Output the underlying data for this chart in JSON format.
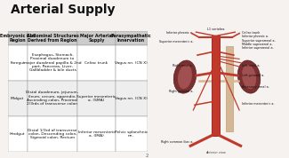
{
  "title": "Arterial Supply",
  "title_fontsize": 10,
  "background_color": "#f0ece8",
  "table_headers": [
    "Embryonic Gut\nRegion",
    "Abdominal Structures\nDerived from Region",
    "Major Arterial\nSupply",
    "Parasympathetic\nInnervation"
  ],
  "table_rows": [
    [
      "Foregut",
      "Esophagus, Stomach,\nProximal duodenum to\nmajor duodenal papilla & 2nd\npart, Pancreas, Liver,\nGallbladder & bile ducts",
      "Celiac trunk",
      "Vagus nn. (CN X)"
    ],
    [
      "Midgut",
      "Distal duodenum, jejunum,\nileum, cecum, appendix,\nAscending colon, Proximal\n2/3rds of transverse colon",
      "Superior mesenteric\na. (SMA)",
      "Vagus nn. (CN X)"
    ],
    [
      "Hindgut",
      "Distal 1/3rd of transverse\ncolon, Descending colon,\nSigmoid colon, Rectum",
      "Inferior mesenteric\na. (IMA)",
      "Pelvic splanchnic\nnn."
    ]
  ],
  "col_props": [
    0.14,
    0.36,
    0.27,
    0.23
  ],
  "header_bg": "#cccccc",
  "row_bg": "#ffffff",
  "row_bg_alt": "#eeeeee",
  "border_color": "#999999",
  "text_color": "#111111",
  "font_size": 3.2,
  "header_font_size": 3.4,
  "aorta_color": "#c0392b",
  "kidney_color": "#7a3030",
  "kidney_inner": "#a05050",
  "ivc_color": "#d4b896",
  "label_color": "#111111",
  "slide_number": "2",
  "title_bg": "#ffffff",
  "slide_bg": "#f5f2ef"
}
